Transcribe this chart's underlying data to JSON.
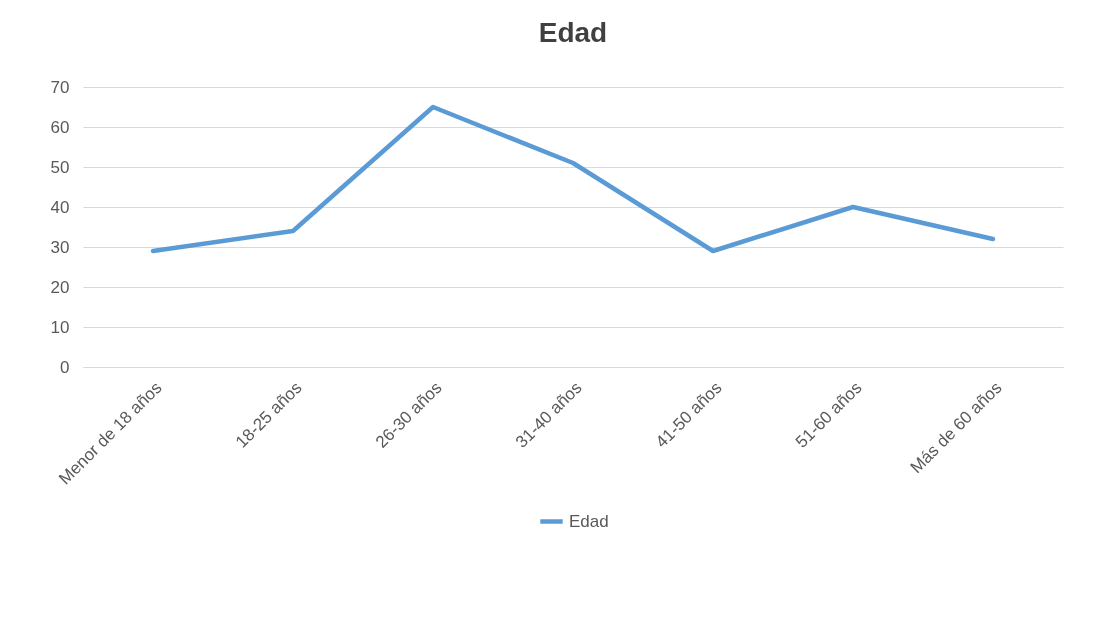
{
  "chart_data": {
    "type": "line",
    "title": "Edad",
    "categories": [
      "Menor de 18 años",
      "18-25 años",
      "26-30 años",
      "31-40 años",
      "41-50 años",
      "51-60 años",
      "Más de 60 años"
    ],
    "series": [
      {
        "name": "Edad",
        "color": "#5b9bd5",
        "values": [
          29,
          34,
          65,
          51,
          29,
          40,
          32
        ]
      }
    ],
    "ylim": [
      0,
      70
    ],
    "yticks": [
      0,
      10,
      20,
      30,
      40,
      50,
      60,
      70
    ],
    "grid": "y",
    "legend": "bottom"
  }
}
